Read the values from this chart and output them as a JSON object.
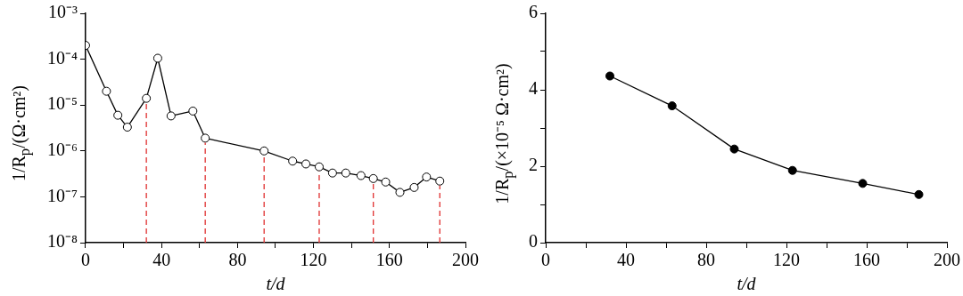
{
  "chart_data": [
    {
      "type": "line",
      "xlabel": "t/d",
      "ylabel": "1/R$_{p}$/(Ω·cm²)",
      "log": "y",
      "grid": false,
      "legend": false,
      "marker": "circle",
      "line_style": "solid",
      "xlim": [
        0,
        200
      ],
      "xticks": [
        0,
        {
          "value": 20,
          "label": null
        },
        40,
        {
          "value": 60,
          "label": null
        },
        80,
        {
          "value": 100,
          "label": null
        },
        120,
        {
          "value": 140,
          "label": null
        },
        160,
        {
          "value": 180,
          "label": null
        },
        200
      ],
      "ylim": [
        1e-08,
        0.001
      ],
      "yticks": [
        {
          "value": 1e-08,
          "label": "10⁻⁸"
        },
        {
          "value": 1e-07,
          "label": "10⁻⁷"
        },
        {
          "value": 1e-06,
          "label": "10⁻⁶"
        },
        {
          "value": 1e-05,
          "label": "10⁻⁵"
        },
        {
          "value": 0.0001,
          "label": "10⁻⁴"
        },
        {
          "value": 0.001,
          "label": "10⁻³"
        }
      ],
      "ref_lines": [
        {
          "axis": "x",
          "value": 32,
          "color": "#e03030",
          "line_style": "dashed"
        },
        {
          "axis": "x",
          "value": 63,
          "color": "#e03030",
          "line_style": "dashed"
        },
        {
          "axis": "x",
          "value": 94,
          "color": "#e03030",
          "line_style": "dashed"
        },
        {
          "axis": "x",
          "value": 123,
          "color": "#e03030",
          "line_style": "dashed"
        },
        {
          "axis": "x",
          "value": 151.5,
          "color": "#e03030",
          "line_style": "dashed"
        },
        {
          "axis": "x",
          "value": 186.5,
          "color": "#e03030",
          "line_style": "dashed"
        }
      ],
      "series": [
        {
          "color": "#000000",
          "x": [
            0,
            11,
            17,
            22,
            32,
            38,
            45,
            56.5,
            63,
            94,
            109,
            116,
            123,
            130,
            137,
            145,
            151.5,
            158,
            165.5,
            173,
            179.5,
            186.5
          ],
          "values": [
            0.0002,
            2e-05,
            6e-06,
            3.3e-06,
            1.4e-05,
            0.000105,
            5.8e-06,
            7.4e-06,
            1.9e-06,
            1e-06,
            6e-07,
            5.2e-07,
            4.5e-07,
            3.3e-07,
            3.3e-07,
            2.9e-07,
            2.5e-07,
            2.1e-07,
            1.25e-07,
            1.6e-07,
            2.7e-07,
            2.2e-07
          ]
        }
      ]
    },
    {
      "type": "line",
      "xlabel": "t/d",
      "ylabel": "1/R$_{p}$/(×10⁻⁵ Ω·cm²)",
      "grid": false,
      "legend": false,
      "marker": "circle",
      "line_style": "solid",
      "xlim": [
        0,
        200
      ],
      "xticks": [
        0,
        {
          "value": 20,
          "label": null
        },
        40,
        {
          "value": 60,
          "label": null
        },
        80,
        {
          "value": 100,
          "label": null
        },
        120,
        {
          "value": 140,
          "label": null
        },
        160,
        {
          "value": 180,
          "label": null
        },
        200
      ],
      "ylim": [
        0,
        6
      ],
      "yticks": [
        0,
        {
          "value": 1,
          "label": null
        },
        2,
        {
          "value": 3,
          "label": null
        },
        4,
        {
          "value": 5,
          "label": null
        },
        6
      ],
      "series": [
        {
          "color": "#000000",
          "x": [
            32,
            63,
            94,
            123,
            158,
            186
          ],
          "values": [
            4.36,
            3.58,
            2.45,
            1.89,
            1.55,
            1.26
          ]
        }
      ]
    }
  ]
}
